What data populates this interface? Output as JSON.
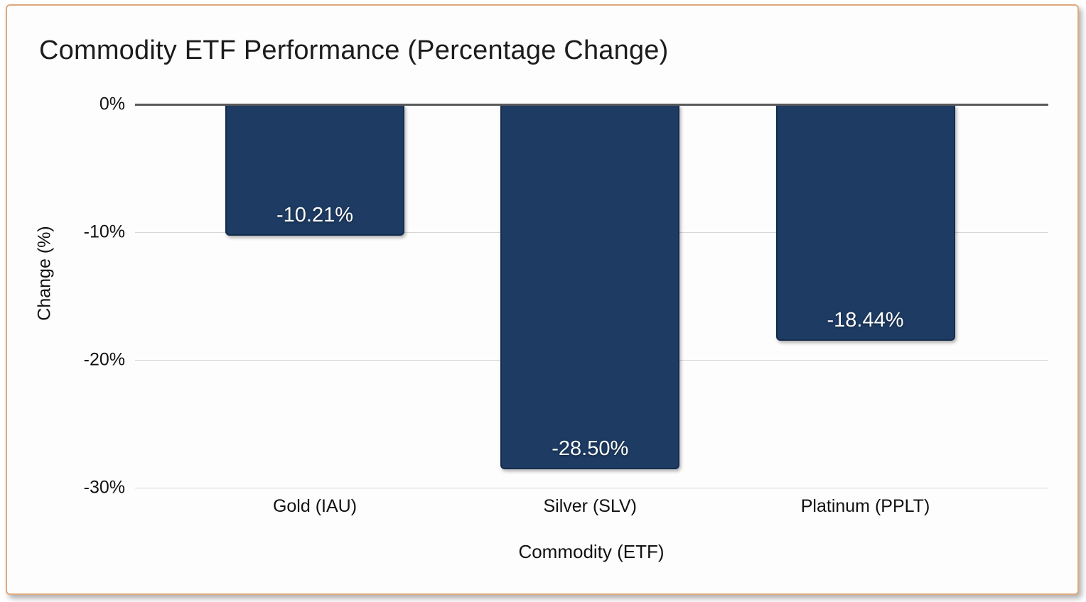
{
  "chart_data": {
    "type": "bar",
    "title": "Commodity ETF Performance (Percentage Change)",
    "xlabel": "Commodity (ETF)",
    "ylabel": "Change (%)",
    "categories": [
      "Gold (IAU)",
      "Silver (SLV)",
      "Platinum (PPLT)"
    ],
    "values": [
      -10.21,
      -28.5,
      -18.44
    ],
    "bar_labels": [
      "-10.21%",
      "-28.50%",
      "-18.44%"
    ],
    "ylim": [
      -30,
      0
    ],
    "yticks": [
      {
        "label": "0%",
        "value": 0
      },
      {
        "label": "-10%",
        "value": -10
      },
      {
        "label": "-20%",
        "value": -20
      },
      {
        "label": "-30%",
        "value": -30
      }
    ],
    "grid": true,
    "legend": false
  },
  "colors": {
    "bar_fill": "#1d3b63",
    "bar_border": "#142c4d",
    "zero_line": "#59595c",
    "grid_line": "#d6d6d6",
    "bar_label_text": "#ffffff",
    "axis_text": "#111111",
    "title_text": "#1c1c1c",
    "frame_border": "#e0a97c",
    "card_background": "#fdfdfd"
  }
}
